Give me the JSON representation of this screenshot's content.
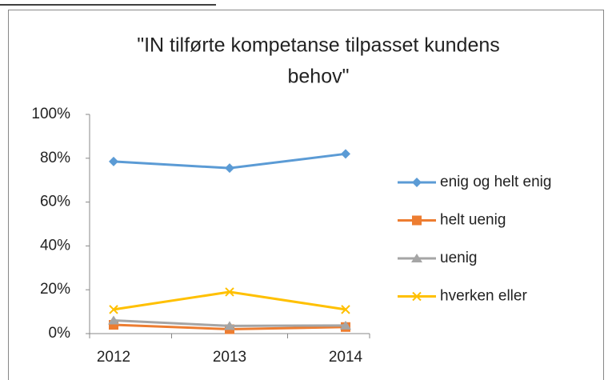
{
  "chart_data": {
    "type": "line",
    "title": [
      "\"IN tilførte kompetanse tilpasset kundens",
      "behov\""
    ],
    "categories": [
      "2012",
      "2013",
      "2014"
    ],
    "series": [
      {
        "name": "enig og helt enig",
        "color": "#5b9bd5",
        "marker": "diamond",
        "values": [
          78.5,
          75.5,
          82
        ]
      },
      {
        "name": "helt uenig",
        "color": "#ed7d31",
        "marker": "square",
        "values": [
          4,
          2,
          3
        ]
      },
      {
        "name": "uenig",
        "color": "#a5a5a5",
        "marker": "triangle",
        "values": [
          6,
          3.5,
          3.7
        ]
      },
      {
        "name": "hverken eller",
        "color": "#ffc000",
        "marker": "x",
        "values": [
          11,
          19,
          11
        ]
      }
    ],
    "ylim": [
      0,
      100
    ],
    "yticks": [
      {
        "value": 0,
        "label": "0%"
      },
      {
        "value": 20,
        "label": "20%"
      },
      {
        "value": 40,
        "label": "40%"
      },
      {
        "value": 60,
        "label": "60%"
      },
      {
        "value": 80,
        "label": "80%"
      },
      {
        "value": 100,
        "label": "100%"
      }
    ],
    "legend": "right"
  }
}
